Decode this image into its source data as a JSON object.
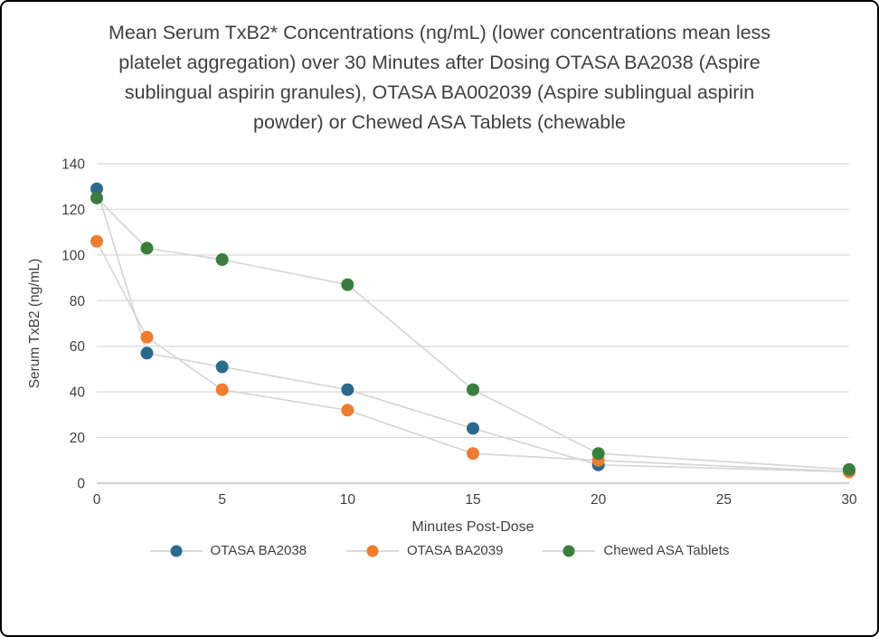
{
  "chart_data": {
    "type": "line",
    "title": "Mean Serum TxB2* Concentrations (ng/mL) (lower concentrations mean less platelet aggregation) over 30 Minutes after Dosing OTASA BA2038 (Aspire sublingual aspirin granules), OTASA BA002039 (Aspire sublingual aspirin powder) or Chewed ASA Tablets (chewable",
    "xlabel": "Minutes Post-Dose",
    "ylabel": "Serum TxB2 (ng/mL)",
    "xlim": [
      0,
      30
    ],
    "ylim": [
      0,
      140
    ],
    "x_ticks": [
      0,
      5,
      10,
      15,
      20,
      25,
      30
    ],
    "y_ticks": [
      0,
      20,
      40,
      60,
      80,
      100,
      120,
      140
    ],
    "grid": true,
    "legend_position": "bottom",
    "connector_line_color": "#d6d6d6",
    "gridline_color": "#d9d9d9",
    "axis_line_color": "#bfbfbf",
    "text_color": "#404040",
    "x": [
      0,
      2,
      5,
      10,
      15,
      20,
      30
    ],
    "series": [
      {
        "name": "OTASA BA2038",
        "color": "#2b6a8c",
        "values": [
          129,
          57,
          51,
          41,
          24,
          8,
          5
        ]
      },
      {
        "name": "OTASA BA2039",
        "color": "#ed7d31",
        "values": [
          106,
          64,
          41,
          32,
          13,
          10,
          5
        ]
      },
      {
        "name": "Chewed ASA Tablets",
        "color": "#3a7d3e",
        "values": [
          125,
          103,
          98,
          87,
          41,
          13,
          6
        ]
      }
    ]
  }
}
